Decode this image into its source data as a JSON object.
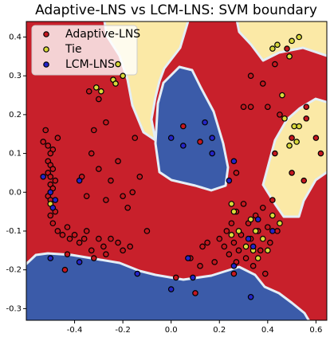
{
  "chart_data": {
    "type": "scatter",
    "title": "Adaptive-LNS vs LCM-LNS: SVM boundary",
    "xlim": [
      -0.6,
      0.645
    ],
    "ylim": [
      -0.33,
      0.44
    ],
    "xticks": [
      -0.4,
      -0.2,
      {
        "value": 0,
        "label": "0.0"
      },
      0.2,
      0.4,
      0.6
    ],
    "yticks": [
      -0.3,
      -0.2,
      -0.1,
      {
        "value": 0,
        "label": "0.0"
      },
      0.1,
      0.2,
      0.3,
      0.4
    ],
    "legend": "upper left",
    "series": [
      {
        "name": "Adaptive-LNS",
        "color": "#c4171f",
        "x": [
          -0.52,
          -0.47,
          -0.53,
          -0.51,
          -0.49,
          -0.5,
          -0.51,
          -0.5,
          -0.49,
          -0.51,
          -0.5,
          -0.48,
          -0.5,
          -0.49,
          -0.51,
          -0.5,
          -0.48,
          -0.5,
          -0.49,
          -0.47,
          -0.45,
          -0.43,
          -0.42,
          -0.4,
          -0.38,
          -0.36,
          -0.35,
          -0.33,
          -0.3,
          -0.28,
          -0.27,
          -0.25,
          -0.22,
          -0.2,
          -0.17,
          -0.43,
          -0.44,
          -0.32,
          -0.37,
          -0.35,
          -0.33,
          -0.3,
          -0.27,
          -0.25,
          -0.22,
          -0.2,
          -0.18,
          -0.16,
          -0.15,
          -0.3,
          -0.27,
          -0.34,
          -0.32,
          -0.1,
          0.02,
          0.08,
          0.12,
          0.13,
          0.15,
          0.18,
          0.2,
          0.22,
          0.23,
          0.24,
          0.25,
          0.26,
          0.27,
          0.28,
          0.29,
          0.3,
          0.31,
          0.32,
          0.33,
          0.34,
          0.35,
          0.36,
          0.37,
          0.38,
          0.39,
          0.4,
          0.41,
          0.42,
          0.44,
          0.3,
          0.33,
          0.4,
          0.45,
          0.56,
          0.5,
          0.6,
          0.62,
          0.43,
          0.27,
          0.33,
          0.38,
          0.43,
          0.48,
          0.56,
          0.5,
          0.55,
          0.1,
          0.05,
          -0.13,
          0.12,
          0.27,
          0.26
        ],
        "y": [
          0.16,
          0.14,
          0.13,
          0.12,
          0.11,
          0.1,
          0.08,
          0.07,
          0.06,
          0.05,
          0.04,
          0.03,
          0.02,
          0.01,
          -0.01,
          -0.02,
          -0.05,
          -0.06,
          -0.08,
          -0.1,
          -0.11,
          -0.09,
          -0.12,
          -0.11,
          -0.13,
          -0.12,
          -0.1,
          -0.15,
          -0.12,
          -0.14,
          -0.16,
          -0.12,
          -0.13,
          -0.15,
          -0.14,
          -0.16,
          -0.2,
          -0.17,
          0.04,
          -0.01,
          0.1,
          0.06,
          -0.02,
          0.03,
          0.08,
          -0.01,
          -0.04,
          0.0,
          0.14,
          0.24,
          0.18,
          0.26,
          0.16,
          -0.1,
          -0.22,
          -0.17,
          0.13,
          -0.14,
          -0.13,
          -0.18,
          -0.12,
          -0.14,
          -0.1,
          -0.16,
          -0.08,
          -0.13,
          -0.05,
          -0.15,
          -0.11,
          -0.03,
          -0.17,
          -0.08,
          -0.12,
          -0.19,
          -0.06,
          -0.1,
          -0.15,
          -0.04,
          -0.21,
          -0.09,
          -0.13,
          -0.02,
          -0.1,
          0.22,
          0.22,
          0.22,
          0.2,
          0.19,
          0.14,
          0.14,
          0.1,
          0.1,
          0.05,
          0.3,
          0.28,
          0.33,
          0.37,
          0.22,
          0.05,
          0.03,
          -0.26,
          0.17,
          0.04,
          -0.19,
          -0.18,
          -0.21
        ]
      },
      {
        "name": "Tie",
        "color": "#d9d93a",
        "x": [
          -0.22,
          -0.2,
          -0.24,
          -0.23,
          -0.31,
          -0.29,
          -0.5,
          0.42,
          0.44,
          0.49,
          0.5,
          0.53,
          0.46,
          0.47,
          0.51,
          0.52,
          0.49,
          0.53,
          0.25,
          0.26,
          0.28,
          0.33,
          0.35,
          0.38,
          0.42,
          0.34,
          0.31,
          0.25,
          0.4,
          0.45,
          0.36
        ],
        "y": [
          0.33,
          0.3,
          0.29,
          0.28,
          0.27,
          0.26,
          -0.03,
          0.37,
          0.38,
          0.35,
          0.39,
          0.4,
          0.25,
          0.19,
          0.17,
          0.13,
          0.12,
          0.17,
          -0.03,
          -0.05,
          -0.1,
          -0.07,
          -0.1,
          -0.12,
          -0.06,
          -0.15,
          -0.14,
          -0.11,
          -0.15,
          -0.08,
          -0.17
        ]
      },
      {
        "name": "LCM-LNS",
        "color": "#2424c8",
        "x": [
          -0.53,
          -0.5,
          -0.48,
          -0.49,
          -0.38,
          -0.5,
          -0.38,
          -0.14,
          0.0,
          0.07,
          0.05,
          0.14,
          0.17,
          0.24,
          0.09,
          0.0,
          0.26,
          0.36,
          0.42,
          0.33,
          0.32,
          0.34,
          0.26,
          0.17
        ],
        "y": [
          0.04,
          0.0,
          -0.02,
          -0.04,
          0.03,
          -0.17,
          -0.18,
          -0.21,
          0.14,
          -0.17,
          0.12,
          0.18,
          0.1,
          0.03,
          -0.22,
          -0.25,
          -0.19,
          -0.07,
          -0.1,
          -0.27,
          -0.12,
          -0.14,
          0.08,
          0.14
        ]
      }
    ]
  }
}
